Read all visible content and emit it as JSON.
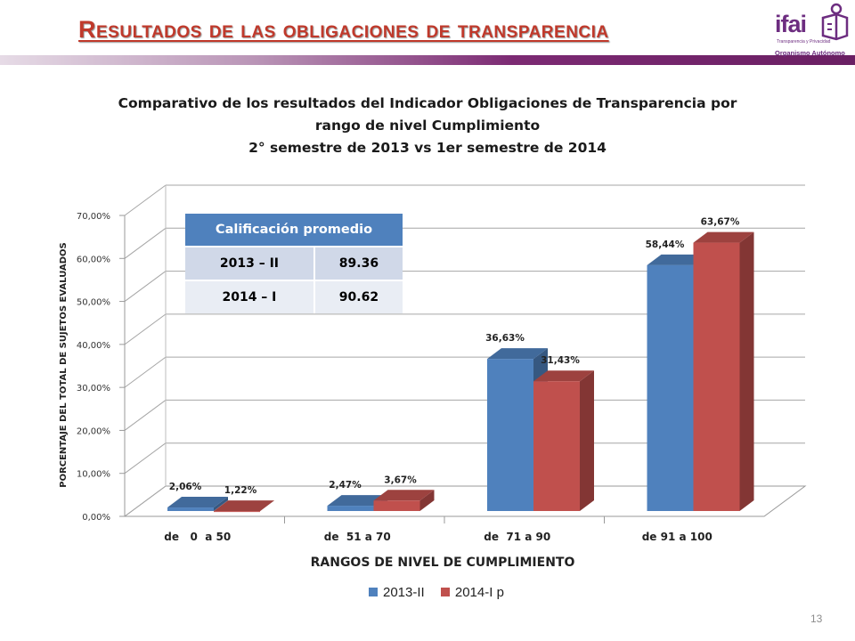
{
  "header": {
    "title": "Resultados de las obligaciones de transparencia",
    "logo": {
      "name": "ifai",
      "line1": "Transparencia y Privacidad",
      "line2": "Organismo Autónomo",
      "color": "#6d2d80"
    }
  },
  "chart_title_lines": [
    "Comparativo de los resultados del Indicador Obligaciones de Transparencia  por",
    "rango de nivel Cumplimiento",
    "2° semestre de 2013  vs  1er semestre de 2014"
  ],
  "chart_data": {
    "type": "bar",
    "subtype": "3d-clustered-column",
    "title": "Comparativo de los resultados del Indicador Obligaciones de Transparencia  por rango de nivel Cumplimiento 2° semestre de 2013  vs  1er semestre de 2014",
    "categories": [
      "de   0  a 50",
      "de  51 a 70",
      "de  71 a 90",
      "de 91 a 100"
    ],
    "series": [
      {
        "name": "2013-II",
        "color": "#4f81bd",
        "values": [
          2.06,
          2.47,
          36.63,
          58.44
        ],
        "labels": [
          "2,06%",
          "2,47%",
          "36,63%",
          "58,44%"
        ]
      },
      {
        "name": "2014-I p",
        "color": "#c0504d",
        "values": [
          1.22,
          3.67,
          31.43,
          63.67
        ],
        "labels": [
          "1,22%",
          "3,67%",
          "31,43%",
          "63,67%"
        ]
      }
    ],
    "xlabel": "RANGOS DE NIVEL DE CUMPLIMIENTO",
    "ylabel": "PORCENTAJE  DEL TOTAL DE SUJETOS EVALUADOS",
    "ylim": [
      0,
      70
    ],
    "yticks": [
      "0,00%",
      "10,00%",
      "20,00%",
      "30,00%",
      "40,00%",
      "50,00%",
      "60,00%",
      "70,00%"
    ],
    "grid": true,
    "legend_position": "bottom"
  },
  "avg_table": {
    "header": "Calificación  promedio",
    "rows": [
      {
        "period": "2013 – II",
        "value": "89.36"
      },
      {
        "period": "2014 – I",
        "value": "90.62"
      }
    ]
  },
  "page_number": "13"
}
